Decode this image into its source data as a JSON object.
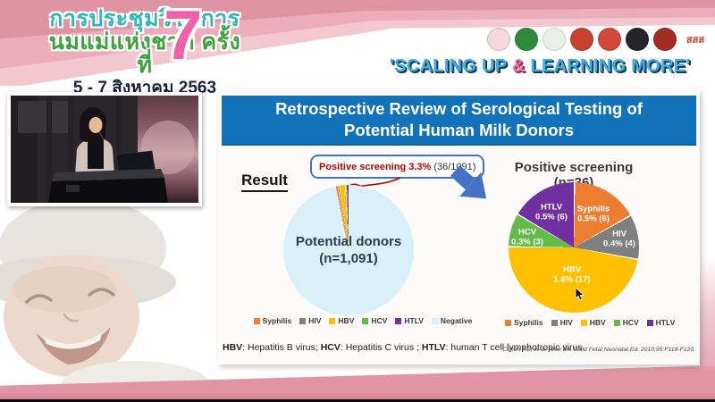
{
  "header": {
    "title_line1": "การประชุมวิชาการ",
    "title_line2": "นมแม่แห่งชาติ ครั้งที่",
    "date_line": "5 - 7 สิงหาคม 2563",
    "edition_number": "7",
    "slogan_part1": "'SCALING UP ",
    "slogan_amp": "&",
    "slogan_part2": " LEARNING MORE'",
    "colors": {
      "band_pink": "#E294A4",
      "slogan_blue": "#44AEDC",
      "amp_pink": "#E87FB2",
      "title_teal": "#2FB7BD",
      "title_green": "#3CA23C",
      "date_navy": "#19233E",
      "seven_pink": "#EF62A8"
    },
    "logos": [
      {
        "name": "breastfeeding-foundation-logo",
        "color": "#F3D9DE"
      },
      {
        "name": "ministry-public-health-logo",
        "color": "#2E8B3C"
      },
      {
        "name": "department-of-health-logo",
        "color": "#E9F2E9"
      },
      {
        "name": "university-crest-logo",
        "color": "#C8402E"
      },
      {
        "name": "royal-crest-logo",
        "color": "#D4483A"
      },
      {
        "name": "university-seal-logo",
        "color": "#26262A"
      },
      {
        "name": "royal-college-crest-logo",
        "color": "#A52C22"
      },
      {
        "name": "thai-health-sss-logo",
        "color": "#FFFFFF",
        "text": "สสส",
        "text_color": "#D93A2F"
      }
    ]
  },
  "slide": {
    "title_line1": "Retrospective Review of Serological Testing of",
    "title_line2": "Potential Human Milk Donors",
    "title_bg": "#1272B9",
    "result_label": "Result",
    "callout_highlight": "Positive screening 3.3%",
    "callout_detail": "(36/1091)",
    "right_chart_title": "Positive screening (n=36)",
    "footnote": [
      {
        "abbr": "HBV",
        "def": ": Hepatitis B virus; "
      },
      {
        "abbr": "HCV",
        "def": ": Hepatitis C virus ; "
      },
      {
        "abbr": "HTLV",
        "def": ": human T cell lymphotropic virus"
      }
    ],
    "citation": "Cohen RS, et al. Arch Dis Child Fetal Neonatal Ed. 2010;95:F118-F120."
  },
  "chart_data": [
    {
      "type": "pie",
      "title": "Potential donors (n=1,091)",
      "center_label_line1": "Potential donors",
      "center_label_line2": "(n=1,091)",
      "total": 1091,
      "start_angle_deg": -11.88,
      "gap_deg": 0.5,
      "legend_position": "bottom",
      "slices": [
        {
          "label": "Syphilis",
          "value": 6,
          "color": "#ED7D31"
        },
        {
          "label": "HIV",
          "value": 4,
          "color": "#7F7F7F"
        },
        {
          "label": "HBV",
          "value": 17,
          "color": "#FFC000"
        },
        {
          "label": "HCV",
          "value": 3,
          "color": "#62BB46"
        },
        {
          "label": "HTLV",
          "value": 6,
          "color": "#7030A0"
        },
        {
          "label": "Negative",
          "value": 1055,
          "color": "#D9F0F9"
        }
      ]
    },
    {
      "type": "pie",
      "title": "Positive screening (n=36)",
      "total": 36,
      "start_angle_deg": 0,
      "gap_deg": 1.2,
      "legend_position": "bottom",
      "slices": [
        {
          "label": "Syphilis",
          "value": 6,
          "pct": "0.5% (6)",
          "color": "#ED7D31"
        },
        {
          "label": "HIV",
          "value": 4,
          "pct": "0.4% (4)",
          "color": "#7F7F7F"
        },
        {
          "label": "HBV",
          "value": 17,
          "pct": "1.6% (17)",
          "color": "#FFC000"
        },
        {
          "label": "HCV",
          "value": 3,
          "pct": "0.3% (3)",
          "color": "#62BB46"
        },
        {
          "label": "HTLV",
          "value": 6,
          "pct": "0.5% (6)",
          "color": "#7030A0"
        }
      ]
    }
  ]
}
